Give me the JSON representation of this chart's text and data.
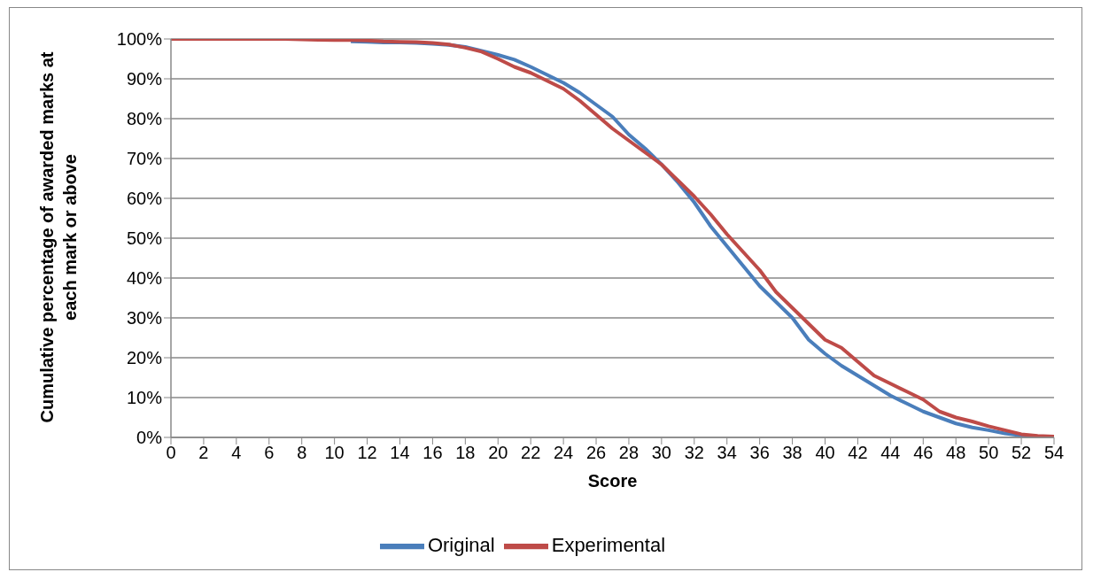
{
  "chart_data": {
    "type": "line",
    "xlabel": "Score",
    "ylabel": "Cumulative percentage of awarded marks at each mark or above",
    "x": [
      0,
      1,
      2,
      3,
      4,
      5,
      6,
      7,
      8,
      9,
      10,
      11,
      12,
      13,
      14,
      15,
      16,
      17,
      18,
      19,
      20,
      21,
      22,
      23,
      24,
      25,
      26,
      27,
      28,
      29,
      30,
      31,
      32,
      33,
      34,
      35,
      36,
      37,
      38,
      39,
      40,
      41,
      42,
      43,
      44,
      45,
      46,
      47,
      48,
      49,
      50,
      51,
      52,
      53,
      54
    ],
    "series": [
      {
        "name": "Original",
        "color": "#4a7ebb",
        "values": [
          null,
          null,
          null,
          null,
          null,
          null,
          null,
          null,
          null,
          null,
          null,
          99.4,
          99.3,
          99.1,
          99.1,
          99,
          98.8,
          98.5,
          98,
          97,
          96,
          94.8,
          93,
          91,
          89,
          86.5,
          83.5,
          80.5,
          76,
          72.5,
          68.5,
          64,
          59,
          53,
          48,
          43,
          38,
          34,
          30,
          24.5,
          21,
          18,
          15.5,
          13,
          10.5,
          8.5,
          6.5,
          5,
          3.5,
          2.5,
          1.8,
          1,
          0.5,
          0.2,
          0.1
        ]
      },
      {
        "name": "Experimental",
        "color": "#be4b48",
        "values": [
          100,
          100,
          100,
          100,
          100,
          100,
          100,
          100,
          99.9,
          99.8,
          99.7,
          99.7,
          99.6,
          99.4,
          99.3,
          99.2,
          99,
          98.6,
          97.8,
          96.8,
          95,
          93,
          91.5,
          89.5,
          87.5,
          84.5,
          81,
          77.5,
          74.5,
          71.5,
          68.5,
          64.5,
          60.5,
          56,
          51,
          46.5,
          42,
          36.5,
          32.5,
          28.5,
          24.5,
          22.5,
          19,
          15.5,
          13.5,
          11.5,
          9.5,
          6.5,
          5,
          4,
          2.8,
          1.8,
          0.8,
          0.4,
          0.2
        ]
      }
    ],
    "xlim": [
      0,
      54
    ],
    "xticks": [
      0,
      2,
      4,
      6,
      8,
      10,
      12,
      14,
      16,
      18,
      20,
      22,
      24,
      26,
      28,
      30,
      32,
      34,
      36,
      38,
      40,
      42,
      44,
      46,
      48,
      50,
      52,
      54
    ],
    "ylim": [
      0,
      100
    ],
    "yticks": [
      {
        "value": 0,
        "label": "0%"
      },
      {
        "value": 10,
        "label": "10%"
      },
      {
        "value": 20,
        "label": "20%"
      },
      {
        "value": 30,
        "label": "30%"
      },
      {
        "value": 40,
        "label": "40%"
      },
      {
        "value": 50,
        "label": "50%"
      },
      {
        "value": 60,
        "label": "60%"
      },
      {
        "value": 70,
        "label": "70%"
      },
      {
        "value": 80,
        "label": "80%"
      },
      {
        "value": 90,
        "label": "90%"
      },
      {
        "value": 100,
        "label": "100%"
      }
    ],
    "grid": "y",
    "legend": "bottom",
    "marker": "none",
    "line_style": "solid"
  }
}
